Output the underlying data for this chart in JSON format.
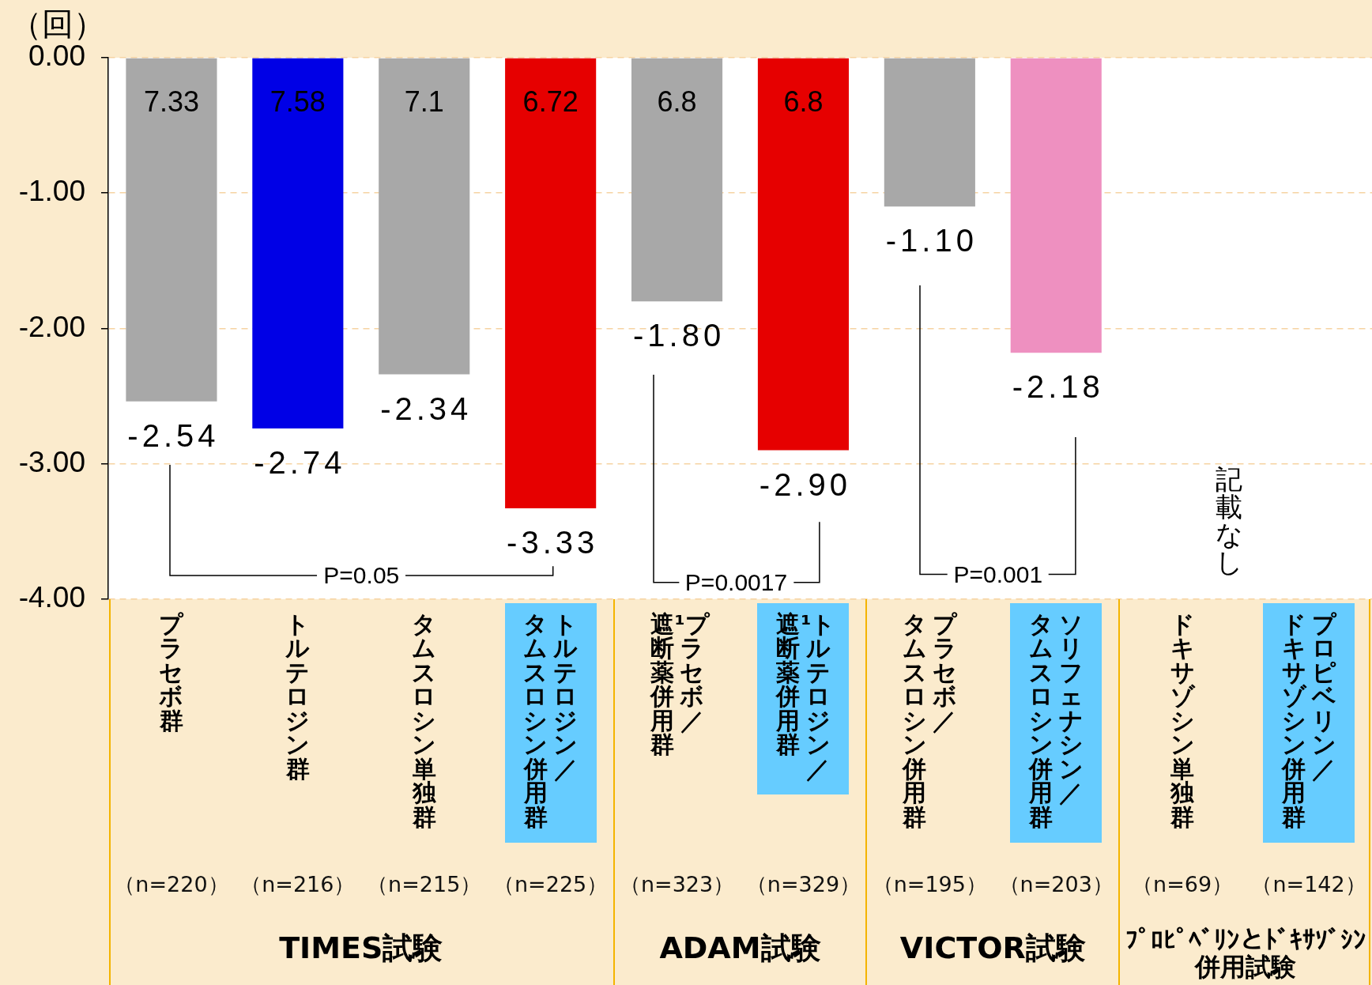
{
  "chart_data": {
    "type": "bar",
    "ylabel": "（回）",
    "categories": [
      "プラセボ群",
      "トルテロジン群",
      "タムスロシン単独群",
      "トルテロジン／タムスロシン併用群",
      "¹プラセボ／遮断薬併用群",
      "¹トルテロジン／遮断薬併用群",
      "プラセボ／タムスロシン併用群",
      "ソリフェナシン／タムスロシン併用群",
      "ドキサゾシン単独群",
      "プロピベリン／ドキサゾシン併用群"
    ],
    "values": [
      -2.54,
      -2.74,
      -2.34,
      -3.33,
      -1.8,
      -2.9,
      -1.1,
      -2.18,
      null,
      null
    ],
    "colors": [
      "#a8a8a8",
      "#0000e6",
      "#a8a8a8",
      "#e60000",
      "#a8a8a8",
      "#e60000",
      "#a8a8a8",
      "#ee90c0",
      null,
      null
    ],
    "value_labels": [
      "-2.54",
      "-2.74",
      "-2.34",
      "-3.33",
      "-1.80",
      "-2.90",
      "-1.10",
      "-2.18",
      null,
      null
    ],
    "ylim": [
      -4,
      0
    ],
    "yticks": [
      {
        "value": 0,
        "label": "0.00"
      },
      {
        "value": -1,
        "label": "-1.00"
      },
      {
        "value": -2,
        "label": "-2.00"
      },
      {
        "value": -3,
        "label": "-3.00"
      },
      {
        "value": -4,
        "label": "-4.00"
      }
    ],
    "grid": "y",
    "annotations": [
      "7.33",
      "7.58",
      "7.1",
      "6.72",
      "6.8",
      "6.8",
      "（n=220）",
      "（n=216）",
      "（n=215）",
      "（n=225）",
      "（n=323）",
      "（n=329）",
      "（n=195）",
      "（n=203）",
      "（n=69）",
      "（n=142）",
      "P=0.05",
      "P=0.0017",
      "P=0.001",
      "記載なし",
      "TIMES試験",
      "ADAM試験",
      "VICTOR試験",
      "ﾌﾟﾛﾋﾟﾍﾞﾘﾝとﾄﾞｷｻｿﾞｼﾝ併用試験"
    ]
  }
}
